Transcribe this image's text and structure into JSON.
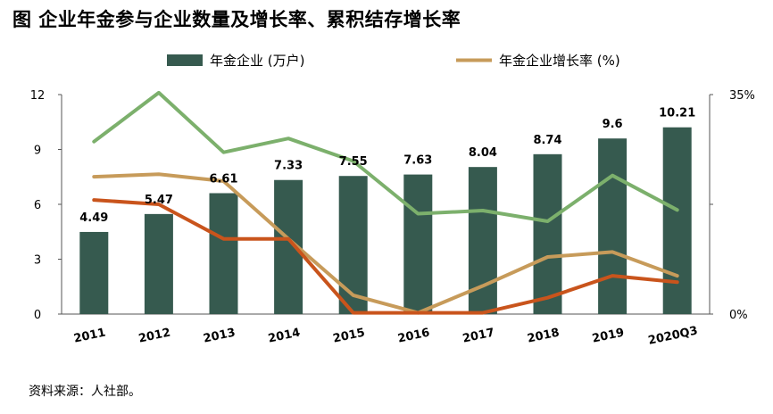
{
  "title": "图   企业年金参与企业数量及增长率、累积结存增长率",
  "source": "资料来源：人社部。",
  "colors": {
    "bar": "#365a4f",
    "line_growth": "#c79b5a",
    "line_orange": "#c9541c",
    "line_green": "#7cb06c",
    "axis": "#555555"
  },
  "chart_data": {
    "type": "bar+line",
    "categories": [
      "2011",
      "2012",
      "2013",
      "2014",
      "2015",
      "2016",
      "2017",
      "2018",
      "2019",
      "2020Q3"
    ],
    "left_axis": {
      "ylim": [
        0,
        12
      ],
      "ticks": [
        "0",
        "3",
        "6",
        "9",
        "12"
      ]
    },
    "right_axis": {
      "ylim": [
        0,
        35
      ],
      "ticks": [
        "0%",
        "35%"
      ]
    },
    "legend": {
      "placement": "top",
      "items": [
        {
          "label": "年金企业 (万户)",
          "kind": "bar"
        },
        {
          "label": "年金企业增长率 (%)",
          "kind": "line"
        }
      ]
    },
    "series": [
      {
        "name": "年金企业 (万户)",
        "type": "bar",
        "axis": "left",
        "values": [
          4.49,
          5.47,
          6.61,
          7.33,
          7.55,
          7.63,
          8.04,
          8.74,
          9.6,
          10.21
        ],
        "labels": [
          "4.49",
          "5.47",
          "6.61",
          "7.33",
          "7.55",
          "7.63",
          "8.04",
          "8.74",
          "9.6",
          "10.21"
        ]
      },
      {
        "name": "年金企业增长率 (%)",
        "type": "line",
        "axis": "right",
        "color_key": "line_growth",
        "values": [
          21.9,
          22.3,
          21.2,
          12.0,
          3.0,
          0.2,
          4.5,
          9.1,
          9.9,
          6.1
        ]
      },
      {
        "type": "line",
        "axis": "right",
        "color_key": "line_orange",
        "values": [
          18.2,
          17.5,
          12.0,
          12.0,
          0.2,
          0.2,
          0.2,
          2.6,
          6.1,
          5.1
        ]
      },
      {
        "type": "line",
        "axis": "right",
        "color_key": "line_green",
        "values": [
          27.5,
          35.3,
          25.8,
          28.0,
          24.4,
          16.0,
          16.5,
          14.8,
          22.1,
          16.6
        ]
      }
    ]
  }
}
